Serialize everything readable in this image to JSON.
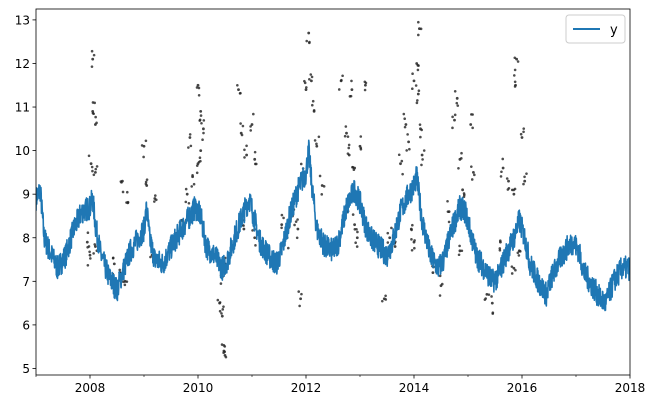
{
  "chart_data": {
    "type": "line",
    "title": "",
    "xlabel": "",
    "ylabel": "",
    "xlim": [
      2007.0,
      2018.0
    ],
    "ylim": [
      4.85,
      13.25
    ],
    "x_major_ticks": [
      2008,
      2010,
      2012,
      2014,
      2016,
      2018
    ],
    "x_minor_ticks": [
      2007,
      2009,
      2011,
      2013,
      2015,
      2017
    ],
    "y_ticks": [
      5,
      6,
      7,
      8,
      9,
      10,
      11,
      12,
      13
    ],
    "x_tick_labels": [
      "2008",
      "2010",
      "2012",
      "2014",
      "2016",
      "2018"
    ],
    "y_tick_labels": [
      "5",
      "6",
      "7",
      "8",
      "9",
      "10",
      "11",
      "12",
      "13"
    ],
    "grid": false,
    "legend": {
      "position": "top-right",
      "entries": [
        {
          "label": "y",
          "color": "#1f77b4"
        }
      ]
    },
    "series": [
      {
        "name": "y",
        "kind": "line",
        "color": "#1f77b4",
        "note_band_half_width": 0.28,
        "x": [
          2007.0,
          2007.08,
          2007.15,
          2007.25,
          2007.4,
          2007.55,
          2007.7,
          2007.85,
          2008.0,
          2008.05,
          2008.1,
          2008.2,
          2008.35,
          2008.5,
          2008.6,
          2008.75,
          2008.9,
          2009.0,
          2009.05,
          2009.1,
          2009.2,
          2009.35,
          2009.55,
          2009.7,
          2009.85,
          2009.95,
          2010.05,
          2010.15,
          2010.3,
          2010.45,
          2010.55,
          2010.7,
          2010.85,
          2010.95,
          2011.05,
          2011.15,
          2011.3,
          2011.45,
          2011.55,
          2011.7,
          2011.85,
          2012.0,
          2012.05,
          2012.1,
          2012.2,
          2012.35,
          2012.5,
          2012.6,
          2012.75,
          2012.9,
          2013.0,
          2013.1,
          2013.2,
          2013.35,
          2013.5,
          2013.6,
          2013.75,
          2013.9,
          2014.0,
          2014.05,
          2014.15,
          2014.3,
          2014.45,
          2014.55,
          2014.7,
          2014.85,
          2014.95,
          2015.05,
          2015.15,
          2015.3,
          2015.45,
          2015.55,
          2015.7,
          2015.85,
          2015.95,
          2016.05,
          2016.15,
          2016.3,
          2016.45,
          2016.55,
          2016.7,
          2016.85,
          2016.95,
          2017.05,
          2017.15,
          2017.3,
          2017.45,
          2017.55,
          2017.7,
          2017.85,
          2017.95,
          2018.0
        ],
        "y": [
          8.9,
          9.1,
          8.0,
          7.7,
          7.3,
          7.6,
          8.2,
          8.6,
          8.7,
          8.9,
          8.3,
          7.6,
          7.1,
          6.8,
          7.2,
          7.7,
          8.0,
          8.2,
          8.7,
          8.0,
          7.5,
          7.4,
          7.9,
          8.2,
          8.5,
          8.7,
          8.5,
          7.8,
          7.6,
          7.3,
          7.5,
          8.1,
          8.6,
          8.9,
          8.4,
          7.9,
          7.6,
          7.4,
          7.7,
          8.5,
          9.1,
          9.5,
          10.0,
          9.3,
          8.2,
          7.8,
          7.7,
          7.9,
          8.7,
          9.1,
          8.8,
          8.3,
          8.0,
          7.8,
          7.6,
          7.9,
          8.6,
          9.0,
          9.2,
          9.4,
          8.4,
          7.6,
          7.3,
          7.5,
          8.2,
          8.7,
          8.6,
          8.1,
          7.6,
          7.3,
          7.0,
          7.1,
          7.6,
          8.0,
          8.4,
          8.0,
          7.4,
          7.0,
          6.7,
          7.1,
          7.5,
          7.8,
          7.9,
          7.7,
          7.2,
          6.9,
          6.6,
          6.5,
          7.0,
          7.3,
          7.3,
          7.3
        ]
      },
      {
        "name": "",
        "kind": "scatter",
        "color": "#222222",
        "points": [
          [
            2008.05,
            12.1
          ],
          [
            2008.05,
            10.9
          ],
          [
            2008.1,
            10.6
          ],
          [
            2008.02,
            9.7
          ],
          [
            2008.1,
            9.5
          ],
          [
            2007.95,
            7.9
          ],
          [
            2008.0,
            7.6
          ],
          [
            2008.1,
            7.8
          ],
          [
            2008.6,
            9.3
          ],
          [
            2008.7,
            8.8
          ],
          [
            2008.45,
            7.4
          ],
          [
            2008.55,
            7.2
          ],
          [
            2008.65,
            7.0
          ],
          [
            2008.75,
            7.6
          ],
          [
            2009.0,
            10.1
          ],
          [
            2009.05,
            9.2
          ],
          [
            2009.2,
            8.9
          ],
          [
            2009.15,
            7.6
          ],
          [
            2009.6,
            8.1
          ],
          [
            2009.7,
            8.4
          ],
          [
            2009.8,
            9.0
          ],
          [
            2009.9,
            9.4
          ],
          [
            2010.0,
            11.5
          ],
          [
            2010.05,
            10.9
          ],
          [
            2010.1,
            10.5
          ],
          [
            2010.05,
            10.0
          ],
          [
            2010.0,
            9.7
          ],
          [
            2009.85,
            10.3
          ],
          [
            2010.4,
            6.5
          ],
          [
            2010.45,
            6.2
          ],
          [
            2010.48,
            5.4
          ],
          [
            2010.5,
            5.3
          ],
          [
            2010.45,
            7.1
          ],
          [
            2010.5,
            7.4
          ],
          [
            2010.75,
            11.4
          ],
          [
            2010.8,
            10.4
          ],
          [
            2010.9,
            9.9
          ],
          [
            2011.0,
            10.6
          ],
          [
            2011.05,
            9.8
          ],
          [
            2010.85,
            8.2
          ],
          [
            2011.05,
            8.0
          ],
          [
            2011.55,
            8.3
          ],
          [
            2011.65,
            8.0
          ],
          [
            2011.75,
            8.5
          ],
          [
            2011.85,
            8.2
          ],
          [
            2011.95,
            9.5
          ],
          [
            2012.05,
            12.7
          ],
          [
            2012.1,
            11.6
          ],
          [
            2012.0,
            11.4
          ],
          [
            2012.15,
            10.9
          ],
          [
            2012.2,
            10.1
          ],
          [
            2012.3,
            9.2
          ],
          [
            2011.9,
            6.6
          ],
          [
            2012.65,
            11.6
          ],
          [
            2012.85,
            11.4
          ],
          [
            2012.75,
            10.4
          ],
          [
            2012.8,
            9.9
          ],
          [
            2012.9,
            9.6
          ],
          [
            2013.0,
            10.1
          ],
          [
            2013.1,
            11.5
          ],
          [
            2012.75,
            8.6
          ],
          [
            2012.9,
            8.3
          ],
          [
            2012.95,
            8.0
          ],
          [
            2013.55,
            8.0
          ],
          [
            2013.65,
            7.8
          ],
          [
            2013.75,
            9.7
          ],
          [
            2013.85,
            10.6
          ],
          [
            2013.9,
            10.2
          ],
          [
            2014.0,
            11.6
          ],
          [
            2014.05,
            12.0
          ],
          [
            2014.1,
            12.8
          ],
          [
            2014.08,
            11.3
          ],
          [
            2014.12,
            10.5
          ],
          [
            2014.15,
            9.9
          ],
          [
            2013.95,
            8.2
          ],
          [
            2014.0,
            7.9
          ],
          [
            2013.45,
            6.6
          ],
          [
            2014.35,
            7.2
          ],
          [
            2014.5,
            6.9
          ],
          [
            2014.65,
            8.6
          ],
          [
            2014.75,
            10.7
          ],
          [
            2014.8,
            11.2
          ],
          [
            2014.85,
            9.8
          ],
          [
            2014.9,
            9.1
          ],
          [
            2015.05,
            10.6
          ],
          [
            2015.1,
            9.5
          ],
          [
            2014.85,
            7.7
          ],
          [
            2015.35,
            6.7
          ],
          [
            2015.45,
            6.5
          ],
          [
            2015.5,
            7.0
          ],
          [
            2015.6,
            7.9
          ],
          [
            2015.65,
            9.6
          ],
          [
            2015.75,
            9.3
          ],
          [
            2015.85,
            9.0
          ],
          [
            2015.9,
            12.1
          ],
          [
            2015.88,
            11.5
          ],
          [
            2016.0,
            10.3
          ],
          [
            2016.05,
            9.3
          ],
          [
            2015.95,
            7.7
          ],
          [
            2015.85,
            7.3
          ]
        ]
      }
    ]
  }
}
